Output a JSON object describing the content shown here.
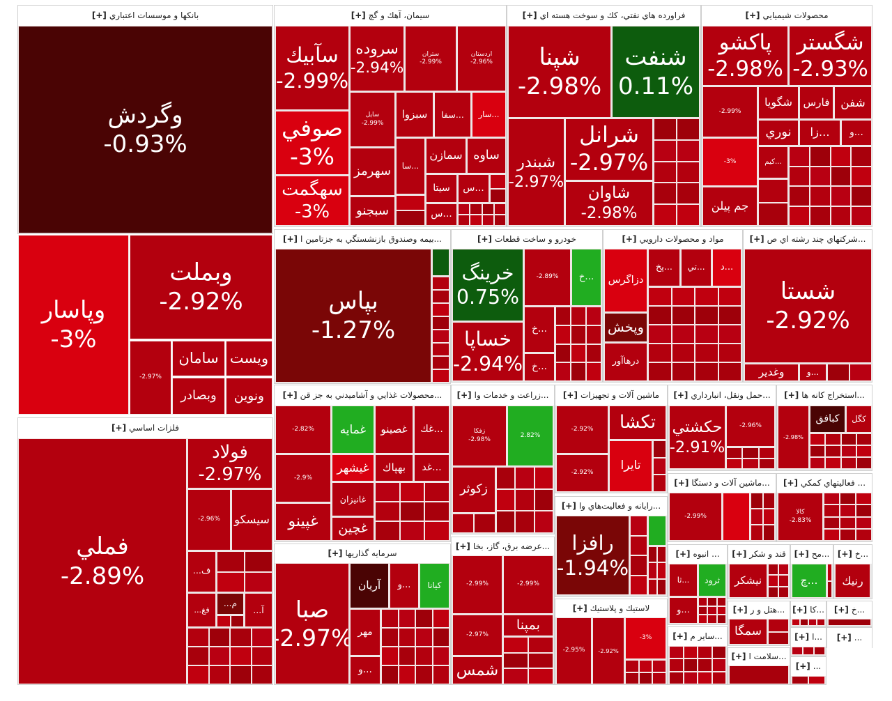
{
  "expand_label": "[+]",
  "tones": {
    "m": "#4a0404",
    "d": "#7a0606",
    "r": "#b3000e",
    "b": "#d9000f",
    "g": "#0d5c0d",
    "G": "#21ad21"
  },
  "sectors": [
    {
      "title": "بانكها و موسسات اعتباري",
      "tiles": [
        {
          "symbol": "وگردش",
          "change": "-0.93%",
          "tone": "m"
        },
        {
          "symbol": "وپاسار",
          "change": "-3%",
          "tone": "b"
        },
        {
          "symbol": "وبملت",
          "change": "-2.92%",
          "tone": "r"
        },
        {
          "symbol": "",
          "change": "-2.97%",
          "tone": "r"
        },
        {
          "symbol": "سامان",
          "change": "",
          "tone": "r"
        },
        {
          "symbol": "ويست",
          "change": "",
          "tone": "r"
        },
        {
          "symbol": "وبصادر",
          "change": "",
          "tone": "r"
        },
        {
          "symbol": "ونوين",
          "change": "",
          "tone": "r"
        }
      ]
    },
    {
      "title": "فلزات اساسي",
      "tiles": [
        {
          "symbol": "فملي",
          "change": "-2.89%",
          "tone": "r"
        },
        {
          "symbol": "فولاد",
          "change": "-2.97%",
          "tone": "r"
        },
        {
          "symbol": "",
          "change": "-2.96%",
          "tone": "r"
        },
        {
          "symbol": "سيسكو",
          "change": "",
          "tone": "r"
        },
        {
          "symbol": "ف...",
          "change": "",
          "tone": "r"
        },
        {
          "symbol": "فغ...",
          "change": "",
          "tone": "r"
        },
        {
          "symbol": "م...",
          "change": "",
          "tone": "d"
        },
        {
          "symbol": "آ...",
          "change": "",
          "tone": "r"
        }
      ]
    },
    {
      "title": "سيمان، آهك و گچ",
      "tiles": [
        {
          "symbol": "سآبيك",
          "change": "-2.99%",
          "tone": "r"
        },
        {
          "symbol": "صوفي",
          "change": "-3%",
          "tone": "b"
        },
        {
          "symbol": "سهگمت",
          "change": "-3%",
          "tone": "b"
        },
        {
          "symbol": "سروده",
          "change": "-2.94%",
          "tone": "r"
        },
        {
          "symbol": "ستران",
          "change": "-2.99%",
          "tone": "r"
        },
        {
          "symbol": "اردستان",
          "change": "-2.96%",
          "tone": "r"
        },
        {
          "symbol": "سايل",
          "change": "-2.99%",
          "tone": "r"
        },
        {
          "symbol": "سبزوا",
          "change": "",
          "tone": "r"
        },
        {
          "symbol": "...سفا",
          "change": "",
          "tone": "r"
        },
        {
          "symbol": "...سار",
          "change": "",
          "tone": "b"
        },
        {
          "symbol": "سهرمز",
          "change": "",
          "tone": "r"
        },
        {
          "symbol": "سبجنو",
          "change": "",
          "tone": "r"
        },
        {
          "symbol": "...سا",
          "change": "",
          "tone": "r"
        },
        {
          "symbol": "سمازن",
          "change": "",
          "tone": "r"
        },
        {
          "symbol": "ساوه",
          "change": "",
          "tone": "r"
        },
        {
          "symbol": "سيتا",
          "change": "",
          "tone": "r"
        },
        {
          "symbol": "...س",
          "change": "",
          "tone": "r"
        },
        {
          "symbol": "...س",
          "change": "",
          "tone": "r"
        }
      ]
    },
    {
      "title": "فراورده هاي نفتي، كك و سوخت هسته اي",
      "tiles": [
        {
          "symbol": "شپنا",
          "change": "-2.98%",
          "tone": "r"
        },
        {
          "symbol": "شنفت",
          "change": "0.11%",
          "tone": "g"
        },
        {
          "symbol": "شبندر",
          "change": "-2.97%",
          "tone": "r"
        },
        {
          "symbol": "شرانل",
          "change": "-2.97%",
          "tone": "r"
        },
        {
          "symbol": "شاوان",
          "change": "-2.98%",
          "tone": "r"
        }
      ]
    },
    {
      "title": "محصولات شيميايي",
      "tiles": [
        {
          "symbol": "پاكشو",
          "change": "-2.98%",
          "tone": "r"
        },
        {
          "symbol": "شگستر",
          "change": "-2.93%",
          "tone": "r"
        },
        {
          "symbol": "",
          "change": "-2.99%",
          "tone": "r"
        },
        {
          "symbol": "شگويا",
          "change": "",
          "tone": "r"
        },
        {
          "symbol": "فارس",
          "change": "",
          "tone": "r"
        },
        {
          "symbol": "شفن",
          "change": "",
          "tone": "r"
        },
        {
          "symbol": "نوري",
          "change": "",
          "tone": "r"
        },
        {
          "symbol": "...زا",
          "change": "",
          "tone": "r"
        },
        {
          "symbol": "...و",
          "change": "",
          "tone": "r"
        },
        {
          "symbol": "",
          "change": "-3%",
          "tone": "b"
        },
        {
          "symbol": "...كيم",
          "change": "",
          "tone": "r"
        },
        {
          "symbol": "جم پيلن",
          "change": "",
          "tone": "r"
        }
      ]
    },
    {
      "title": "...بيمه وصندوق بازنشستگي به جزتامين ا",
      "tiles": [
        {
          "symbol": "بپاس",
          "change": "-1.27%",
          "tone": "d"
        },
        {
          "symbol": "",
          "change": "",
          "tone": "g"
        }
      ]
    },
    {
      "title": "خودرو و ساخت قطعات",
      "tiles": [
        {
          "symbol": "خرينگ",
          "change": "0.75%",
          "tone": "g"
        },
        {
          "symbol": "",
          "change": "-2.89%",
          "tone": "r"
        },
        {
          "symbol": "...خ",
          "change": "",
          "tone": "G"
        },
        {
          "symbol": "خساپا",
          "change": "-2.94%",
          "tone": "r"
        },
        {
          "symbol": "...خ",
          "change": "",
          "tone": "r"
        },
        {
          "symbol": "...خ",
          "change": "",
          "tone": "r"
        }
      ]
    },
    {
      "title": "مواد و محصولات دارويي",
      "tiles": [
        {
          "symbol": "دزاگرس",
          "change": "",
          "tone": "b"
        },
        {
          "symbol": "...پخ",
          "change": "",
          "tone": "r"
        },
        {
          "symbol": "...تي",
          "change": "",
          "tone": "r"
        },
        {
          "symbol": "...د",
          "change": "",
          "tone": "b"
        },
        {
          "symbol": "وپخش",
          "change": "",
          "tone": "d"
        },
        {
          "symbol": "درهاآور",
          "change": "",
          "tone": "r"
        }
      ]
    },
    {
      "title": "...شركتهاي چند رشته اي ص",
      "tiles": [
        {
          "symbol": "شستا",
          "change": "-2.92%",
          "tone": "r"
        },
        {
          "symbol": "وغدير",
          "change": "",
          "tone": "r"
        },
        {
          "symbol": "...و",
          "change": "",
          "tone": "r"
        }
      ]
    },
    {
      "title": "...محصولات غذايي و آشاميدني به جز قن",
      "tiles": [
        {
          "symbol": "",
          "change": "-2.82%",
          "tone": "r"
        },
        {
          "symbol": "غمايه",
          "change": "",
          "tone": "G"
        },
        {
          "symbol": "غصينو",
          "change": "",
          "tone": "r"
        },
        {
          "symbol": "...غك",
          "change": "",
          "tone": "r"
        },
        {
          "symbol": "",
          "change": "-2.9%",
          "tone": "r"
        },
        {
          "symbol": "غيشهر",
          "change": "",
          "tone": "b"
        },
        {
          "symbol": "بهپاك",
          "change": "",
          "tone": "r"
        },
        {
          "symbol": "...غد",
          "change": "",
          "tone": "r"
        },
        {
          "symbol": "غانيزان",
          "change": "",
          "tone": "r"
        },
        {
          "symbol": "غچين",
          "change": "",
          "tone": "r"
        },
        {
          "symbol": "غپينو",
          "change": "",
          "tone": "r"
        }
      ]
    },
    {
      "title": "سرمايه گذاريها",
      "tiles": [
        {
          "symbol": "صبا",
          "change": "-2.97%",
          "tone": "r"
        },
        {
          "symbol": "آريان",
          "change": "",
          "tone": "m"
        },
        {
          "symbol": "...و",
          "change": "",
          "tone": "r"
        },
        {
          "symbol": "كيانا",
          "change": "",
          "tone": "G"
        },
        {
          "symbol": "مهر",
          "change": "",
          "tone": "r"
        },
        {
          "symbol": "...و",
          "change": "",
          "tone": "r"
        }
      ]
    },
    {
      "title": "...زراعت و خدمات وا",
      "tiles": [
        {
          "symbol": "زفكا",
          "change": "-2.98%",
          "tone": "r"
        },
        {
          "symbol": "",
          "change": "2.82%",
          "tone": "G"
        },
        {
          "symbol": "زكوثر",
          "change": "",
          "tone": "r"
        }
      ]
    },
    {
      "title": "...عرضه برق، گاز، بخا",
      "tiles": [
        {
          "symbol": "",
          "change": "-2.99%",
          "tone": "r"
        },
        {
          "symbol": "",
          "change": "-2.99%",
          "tone": "r"
        },
        {
          "symbol": "",
          "change": "-2.97%",
          "tone": "r"
        },
        {
          "symbol": "بمپنا",
          "change": "",
          "tone": "r"
        },
        {
          "symbol": "شمس",
          "change": "",
          "tone": "r"
        }
      ]
    },
    {
      "title": "ماشين آلات و تجهيزات",
      "tiles": [
        {
          "symbol": "",
          "change": "-2.92%",
          "tone": "r"
        },
        {
          "symbol": "تكشا",
          "change": "",
          "tone": "r"
        },
        {
          "symbol": "تايرا",
          "change": "",
          "tone": "b"
        },
        {
          "symbol": "",
          "change": "-2.92%",
          "tone": "r"
        }
      ]
    },
    {
      "title": "...رايانه و فعاليت‌هاي وا",
      "tiles": [
        {
          "symbol": "رافزا",
          "change": "-1.94%",
          "tone": "d"
        },
        {
          "symbol": "",
          "change": "",
          "tone": "G"
        }
      ]
    },
    {
      "title": "لاستيك و پلاستيك",
      "tiles": [
        {
          "symbol": "",
          "change": "-2.95%",
          "tone": "r"
        },
        {
          "symbol": "",
          "change": "-2.92%",
          "tone": "r"
        },
        {
          "symbol": "",
          "change": "-3%",
          "tone": "b"
        }
      ]
    },
    {
      "title": "...حمل ونقل، انبارداري",
      "tiles": [
        {
          "symbol": "حكشتي",
          "change": "-2.91%",
          "tone": "r"
        },
        {
          "symbol": "",
          "change": "-2.96%",
          "tone": "r"
        }
      ]
    },
    {
      "title": "...استخراج كانه ها",
      "tiles": [
        {
          "symbol": "",
          "change": "-2.98%",
          "tone": "r"
        },
        {
          "symbol": "كبافق",
          "change": "",
          "tone": "m"
        },
        {
          "symbol": "كگل",
          "change": "",
          "tone": "r"
        }
      ]
    },
    {
      "title": "...ماشين آلات و دستگا",
      "tiles": [
        {
          "symbol": "",
          "change": "-2.99%",
          "tone": "r"
        },
        {
          "symbol": "",
          "change": "",
          "tone": "b"
        }
      ]
    },
    {
      "title": "... فعاليتهاي كمكي",
      "tiles": [
        {
          "symbol": "كالا",
          "change": "-2.83%",
          "tone": "r"
        }
      ]
    },
    {
      "title": "... انبوه",
      "tiles": [
        {
          "symbol": "...ثا",
          "change": "",
          "tone": "r"
        },
        {
          "symbol": "ثرود",
          "change": "",
          "tone": "G"
        },
        {
          "symbol": "...و",
          "change": "",
          "tone": "r"
        }
      ]
    },
    {
      "title": "قند و شكر",
      "tiles": [
        {
          "symbol": "نيشكر",
          "change": "",
          "tone": "r"
        }
      ]
    },
    {
      "title": "...مح",
      "tiles": [
        {
          "symbol": "...چ",
          "change": "",
          "tone": "G"
        }
      ]
    },
    {
      "title": "...خ",
      "tiles": [
        {
          "symbol": "رنيك",
          "change": "",
          "tone": "r"
        }
      ]
    },
    {
      "title": "...ساير م",
      "tiles": []
    },
    {
      "title": "...هتل و ر",
      "tiles": [
        {
          "symbol": "سمگا",
          "change": "",
          "tone": "r"
        }
      ]
    },
    {
      "title": "...سلامت ا",
      "tiles": []
    },
    {
      "title": "...كا",
      "tiles": []
    },
    {
      "title": "...خ",
      "tiles": []
    },
    {
      "title": "...ا",
      "tiles": []
    },
    {
      "title": "...",
      "tiles": []
    },
    {
      "title": "...",
      "tiles": []
    }
  ]
}
